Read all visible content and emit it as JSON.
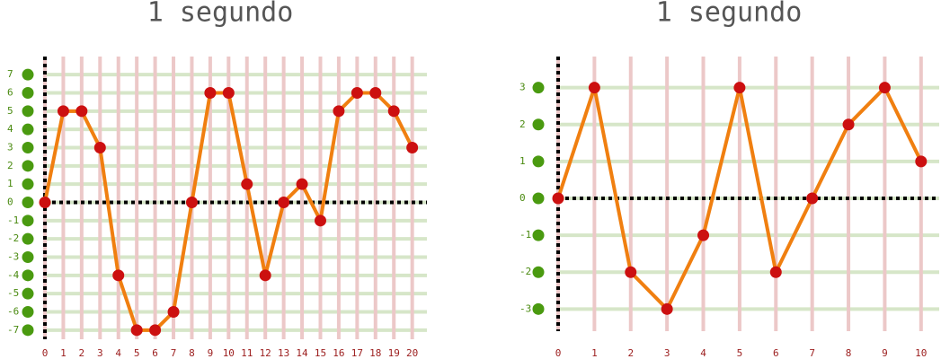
{
  "chart_data": [
    {
      "type": "line",
      "title": "1 segundo",
      "x": [
        0,
        1,
        2,
        3,
        4,
        5,
        6,
        7,
        8,
        9,
        10,
        11,
        12,
        13,
        14,
        15,
        16,
        17,
        18,
        19,
        20
      ],
      "series": [
        {
          "color": "#f07f10",
          "values": [
            0,
            5,
            5,
            3,
            -4,
            -7,
            -7,
            -6,
            0,
            6,
            6,
            1,
            -4,
            0,
            1,
            -1,
            5,
            6,
            6,
            5,
            3
          ]
        }
      ],
      "xlim": [
        0,
        20.8
      ],
      "ylim": [
        -7.5,
        7.5
      ],
      "xticks": [
        0,
        1,
        2,
        3,
        4,
        5,
        6,
        7,
        8,
        9,
        10,
        11,
        12,
        13,
        14,
        15,
        16,
        17,
        18,
        19,
        20
      ],
      "yticks": [
        -7,
        -6,
        -5,
        -4,
        -3,
        -2,
        -1,
        0,
        1,
        2,
        3,
        4,
        5,
        6,
        7
      ],
      "grid": true
    },
    {
      "type": "line",
      "title": "1 segundo",
      "x": [
        0,
        1,
        2,
        3,
        4,
        5,
        6,
        7,
        8,
        9,
        10
      ],
      "series": [
        {
          "color": "#f07f10",
          "values": [
            0,
            3,
            -2,
            -3,
            -1,
            3,
            -2,
            0,
            2,
            3,
            1
          ]
        }
      ],
      "xlim": [
        0,
        10.5
      ],
      "ylim": [
        -3.6,
        3.6
      ],
      "xticks": [
        0,
        1,
        2,
        3,
        4,
        5,
        6,
        7,
        8,
        9,
        10
      ],
      "yticks": [
        -3,
        -2,
        -1,
        0,
        1,
        2,
        3
      ],
      "grid": true
    }
  ]
}
